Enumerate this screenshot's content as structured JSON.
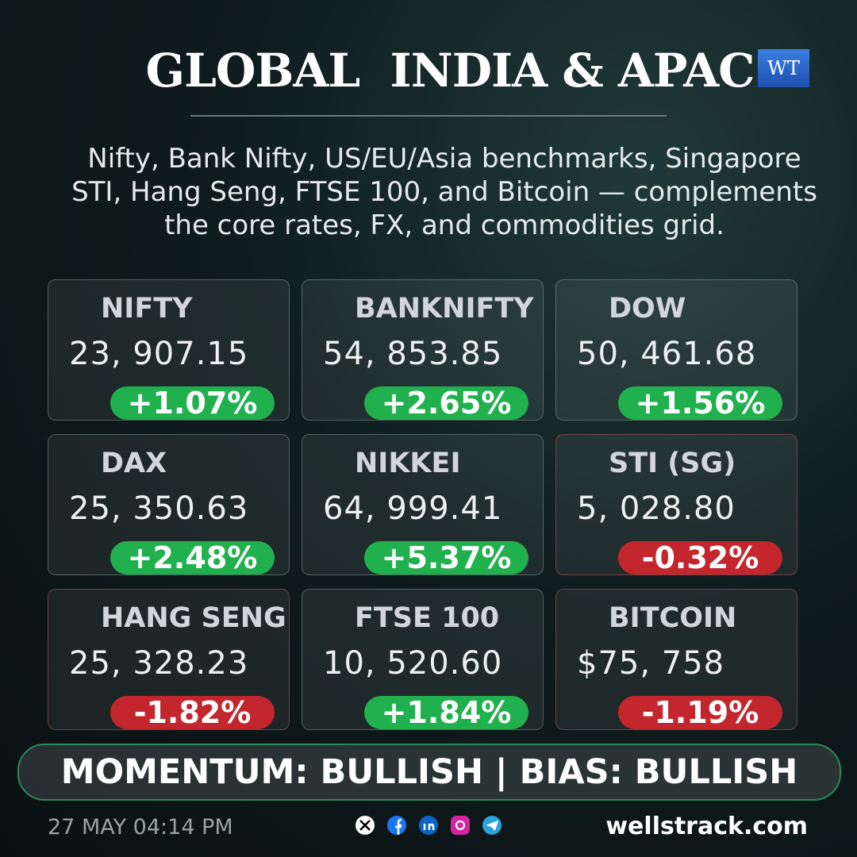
{
  "header": {
    "title": "GLOBAL  INDIA & APAC",
    "logo": "WT"
  },
  "subtitle": [
    "Nifty, Bank Nifty, US/EU/Asia benchmarks, Singapore",
    "STI, Hang Seng, FTSE 100, and Bitcoin — complements",
    "the core rates, FX, and commodities grid."
  ],
  "cards": [
    {
      "name": "NIFTY",
      "value": "23, 907.15",
      "change": "+1.07%"
    },
    {
      "name": "BANKNIFTY",
      "value": "54, 853.85",
      "change": "+2.65%"
    },
    {
      "name": "DOW",
      "value": "50, 461.68",
      "change": "+1.56%"
    },
    {
      "name": "DAX",
      "value": "25, 350.63",
      "change": "+2.48%"
    },
    {
      "name": "NIKKEI",
      "value": "64, 999.41",
      "change": "+5.37%"
    },
    {
      "name": "STI (SG)",
      "value": "5, 028.80",
      "change": "-0.32%"
    },
    {
      "name": "HANG SENG",
      "value": "25, 328.23",
      "change": "-1.82%"
    },
    {
      "name": "FTSE 100",
      "value": "10, 520.60",
      "change": "+1.84%"
    },
    {
      "name": "BITCOIN",
      "value": "$75, 758",
      "change": "-1.19%"
    }
  ],
  "banner": "MOMENTUM: BULLISH | BIAS: BULLISH",
  "footer": {
    "date": "27 MAY 04:14 PM",
    "site": "wellstrack.com"
  }
}
